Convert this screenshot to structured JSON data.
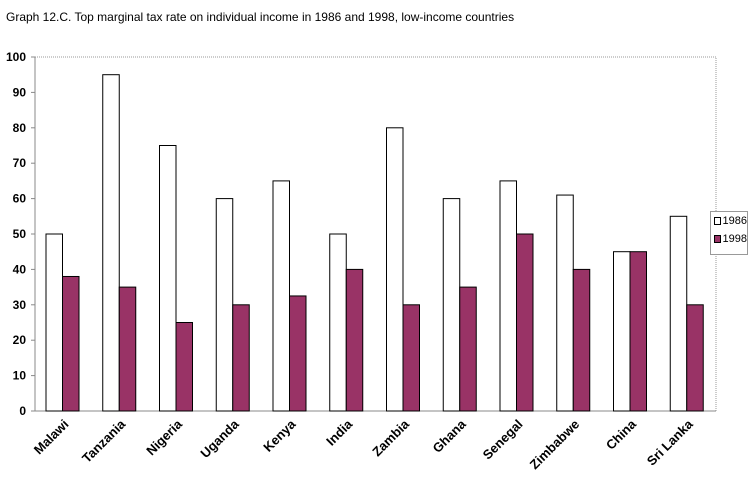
{
  "title": "Graph 12.C.  Top marginal tax rate on individual income in 1986 and 1998, low-income countries",
  "chart_data": {
    "type": "bar",
    "title": "Graph 12.C.  Top marginal tax rate on individual income in 1986 and 1998, low-income countries",
    "xlabel": "",
    "ylabel": "",
    "ylim": [
      0,
      100
    ],
    "yticks": [
      "0",
      "10",
      "20",
      "30",
      "40",
      "50",
      "60",
      "70",
      "80",
      "90",
      "100"
    ],
    "categories": [
      "Malawi",
      "Tanzania",
      "Nigeria",
      "Uganda",
      "Kenya",
      "India",
      "Zambia",
      "Ghana",
      "Senegal",
      "Zimbabwe",
      "China",
      "Sri Lanka"
    ],
    "series": [
      {
        "name": "1986",
        "color": "#ffffff",
        "values": [
          50,
          95,
          75,
          60,
          65,
          50,
          80,
          60,
          65,
          61,
          45,
          55
        ]
      },
      {
        "name": "1998",
        "color": "#993366",
        "values": [
          38,
          35,
          25,
          30,
          32.5,
          40,
          30,
          35,
          50,
          40,
          45,
          30
        ]
      }
    ],
    "grid": false,
    "legend": "right"
  }
}
